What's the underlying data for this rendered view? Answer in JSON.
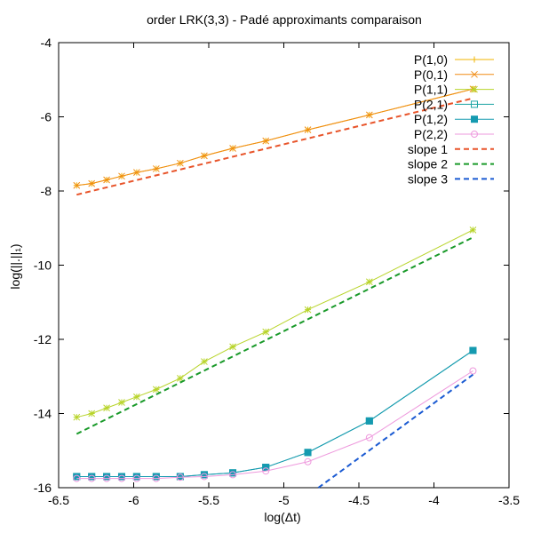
{
  "chart_data": {
    "type": "line",
    "title": "order LRK(3,3) - Padé approximants comparaison",
    "xlabel": "log(Δt)",
    "ylabel": "log(||.||₁)",
    "xlim": [
      -6.5,
      -3.5
    ],
    "ylim": [
      -16,
      -4
    ],
    "xticks": [
      -6.5,
      -6,
      -5.5,
      -5,
      -4.5,
      -4,
      -3.5
    ],
    "yticks": [
      -16,
      -14,
      -12,
      -10,
      -8,
      -6,
      -4
    ],
    "xtick_labels": [
      "-6.5",
      "-6",
      "-5.5",
      "-5",
      "-4.5",
      "-4",
      "-3.5"
    ],
    "ytick_labels": [
      "-16",
      "-14",
      "-12",
      "-10",
      "-8",
      "-6",
      "-4"
    ],
    "grid": false,
    "legend_position": "top-right",
    "x": [
      -6.38,
      -6.28,
      -6.18,
      -6.08,
      -5.98,
      -5.85,
      -5.69,
      -5.53,
      -5.34,
      -5.12,
      -4.84,
      -4.43,
      -3.74
    ],
    "series": [
      {
        "name": "P(1,0)",
        "color": "#f0b400",
        "marker": "plus",
        "style": "solid",
        "values": [
          -7.85,
          -7.8,
          -7.7,
          -7.6,
          -7.5,
          -7.4,
          -7.25,
          -7.05,
          -6.85,
          -6.65,
          -6.35,
          -5.95,
          -5.25
        ]
      },
      {
        "name": "P(0,1)",
        "color": "#f08c14",
        "marker": "cross",
        "style": "solid",
        "values": [
          -7.85,
          -7.8,
          -7.7,
          -7.6,
          -7.5,
          -7.4,
          -7.25,
          -7.05,
          -6.85,
          -6.65,
          -6.35,
          -5.95,
          -5.25
        ]
      },
      {
        "name": "P(1,1)",
        "color": "#b8d42a",
        "marker": "star",
        "style": "solid",
        "values": [
          -14.1,
          -14.0,
          -13.85,
          -13.7,
          -13.55,
          -13.35,
          -13.05,
          -12.6,
          -12.2,
          -11.8,
          -11.2,
          -10.45,
          -9.05
        ]
      },
      {
        "name": "P(2,1)",
        "color": "#1aa3a3",
        "marker": "open-square",
        "style": "solid",
        "values": [
          -15.7,
          -15.7,
          -15.7,
          -15.7,
          -15.7,
          -15.7,
          -15.7,
          -15.65,
          -15.6,
          -15.45,
          -15.05,
          -14.2,
          -12.3
        ]
      },
      {
        "name": "P(1,2)",
        "color": "#159ab0",
        "marker": "filled-square",
        "style": "solid",
        "values": [
          -15.7,
          -15.7,
          -15.7,
          -15.7,
          -15.7,
          -15.7,
          -15.7,
          -15.65,
          -15.6,
          -15.45,
          -15.05,
          -14.2,
          -12.3
        ]
      },
      {
        "name": "P(2,2)",
        "color": "#ee99dd",
        "marker": "open-circle",
        "style": "solid",
        "values": [
          -15.75,
          -15.75,
          -15.75,
          -15.75,
          -15.75,
          -15.75,
          -15.72,
          -15.7,
          -15.65,
          -15.55,
          -15.3,
          -14.65,
          -12.85
        ]
      },
      {
        "name": "slope 1",
        "color": "#e8542a",
        "marker": "none",
        "style": "dashed",
        "x": [
          -6.38,
          -3.74
        ],
        "values": [
          -8.1,
          -5.5
        ]
      },
      {
        "name": "slope 2",
        "color": "#1a9a2a",
        "marker": "none",
        "style": "dashed",
        "x": [
          -6.38,
          -3.74
        ],
        "values": [
          -14.55,
          -9.25
        ]
      },
      {
        "name": "slope 3",
        "color": "#1a5ad2",
        "marker": "none",
        "style": "dashed",
        "x": [
          -4.77,
          -3.74
        ],
        "values": [
          -16.0,
          -12.95
        ]
      }
    ]
  }
}
